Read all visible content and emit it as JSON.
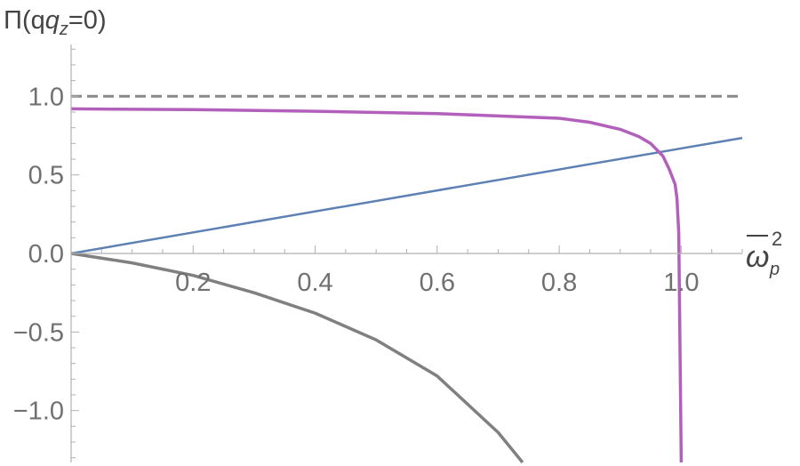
{
  "chart_data": {
    "type": "line",
    "title": "",
    "ylabel": {
      "base": "Π(q",
      "sub": "z",
      "tail": "=0)"
    },
    "xlabel": {
      "base": "ω",
      "sup": "2",
      "sub": "p"
    },
    "xlim": [
      0,
      1.1
    ],
    "ylim": [
      -1.33,
      1.33
    ],
    "xticks": [
      0.2,
      0.4,
      0.6,
      0.8,
      1.0
    ],
    "xtick_labels": [
      "0.2",
      "0.4",
      "0.6",
      "0.8",
      "1.0"
    ],
    "yticks": [
      -1.0,
      -0.5,
      0.0,
      0.5,
      1.0
    ],
    "ytick_labels": [
      "-1.0",
      "-0.5",
      "0.0",
      "0.5",
      "1.0"
    ],
    "grid": false,
    "series": [
      {
        "color": "#888888",
        "style": "dashed",
        "x": [
          0,
          1.1
        ],
        "y": [
          1.0,
          1.0
        ]
      },
      {
        "color": "#5e81b5",
        "style": "solid",
        "x": [
          0,
          1.1
        ],
        "y": [
          0,
          0.735
        ]
      },
      {
        "color": "#b360bc",
        "style": "solid",
        "x": [
          0,
          0.2,
          0.4,
          0.6,
          0.8,
          0.85,
          0.9,
          0.93,
          0.95,
          0.97,
          0.98,
          0.99,
          0.993,
          0.996,
          0.998,
          1.0
        ],
        "y": [
          0.92,
          0.915,
          0.905,
          0.89,
          0.86,
          0.835,
          0.79,
          0.745,
          0.7,
          0.62,
          0.54,
          0.44,
          0.35,
          0.13,
          -0.6,
          -1.33
        ]
      },
      {
        "color": "#808080",
        "style": "solid",
        "x": [
          0,
          0.1,
          0.2,
          0.3,
          0.4,
          0.5,
          0.6,
          0.7,
          0.74
        ],
        "y": [
          0,
          -0.06,
          -0.14,
          -0.25,
          -0.38,
          -0.55,
          -0.78,
          -1.14,
          -1.33
        ]
      }
    ]
  }
}
